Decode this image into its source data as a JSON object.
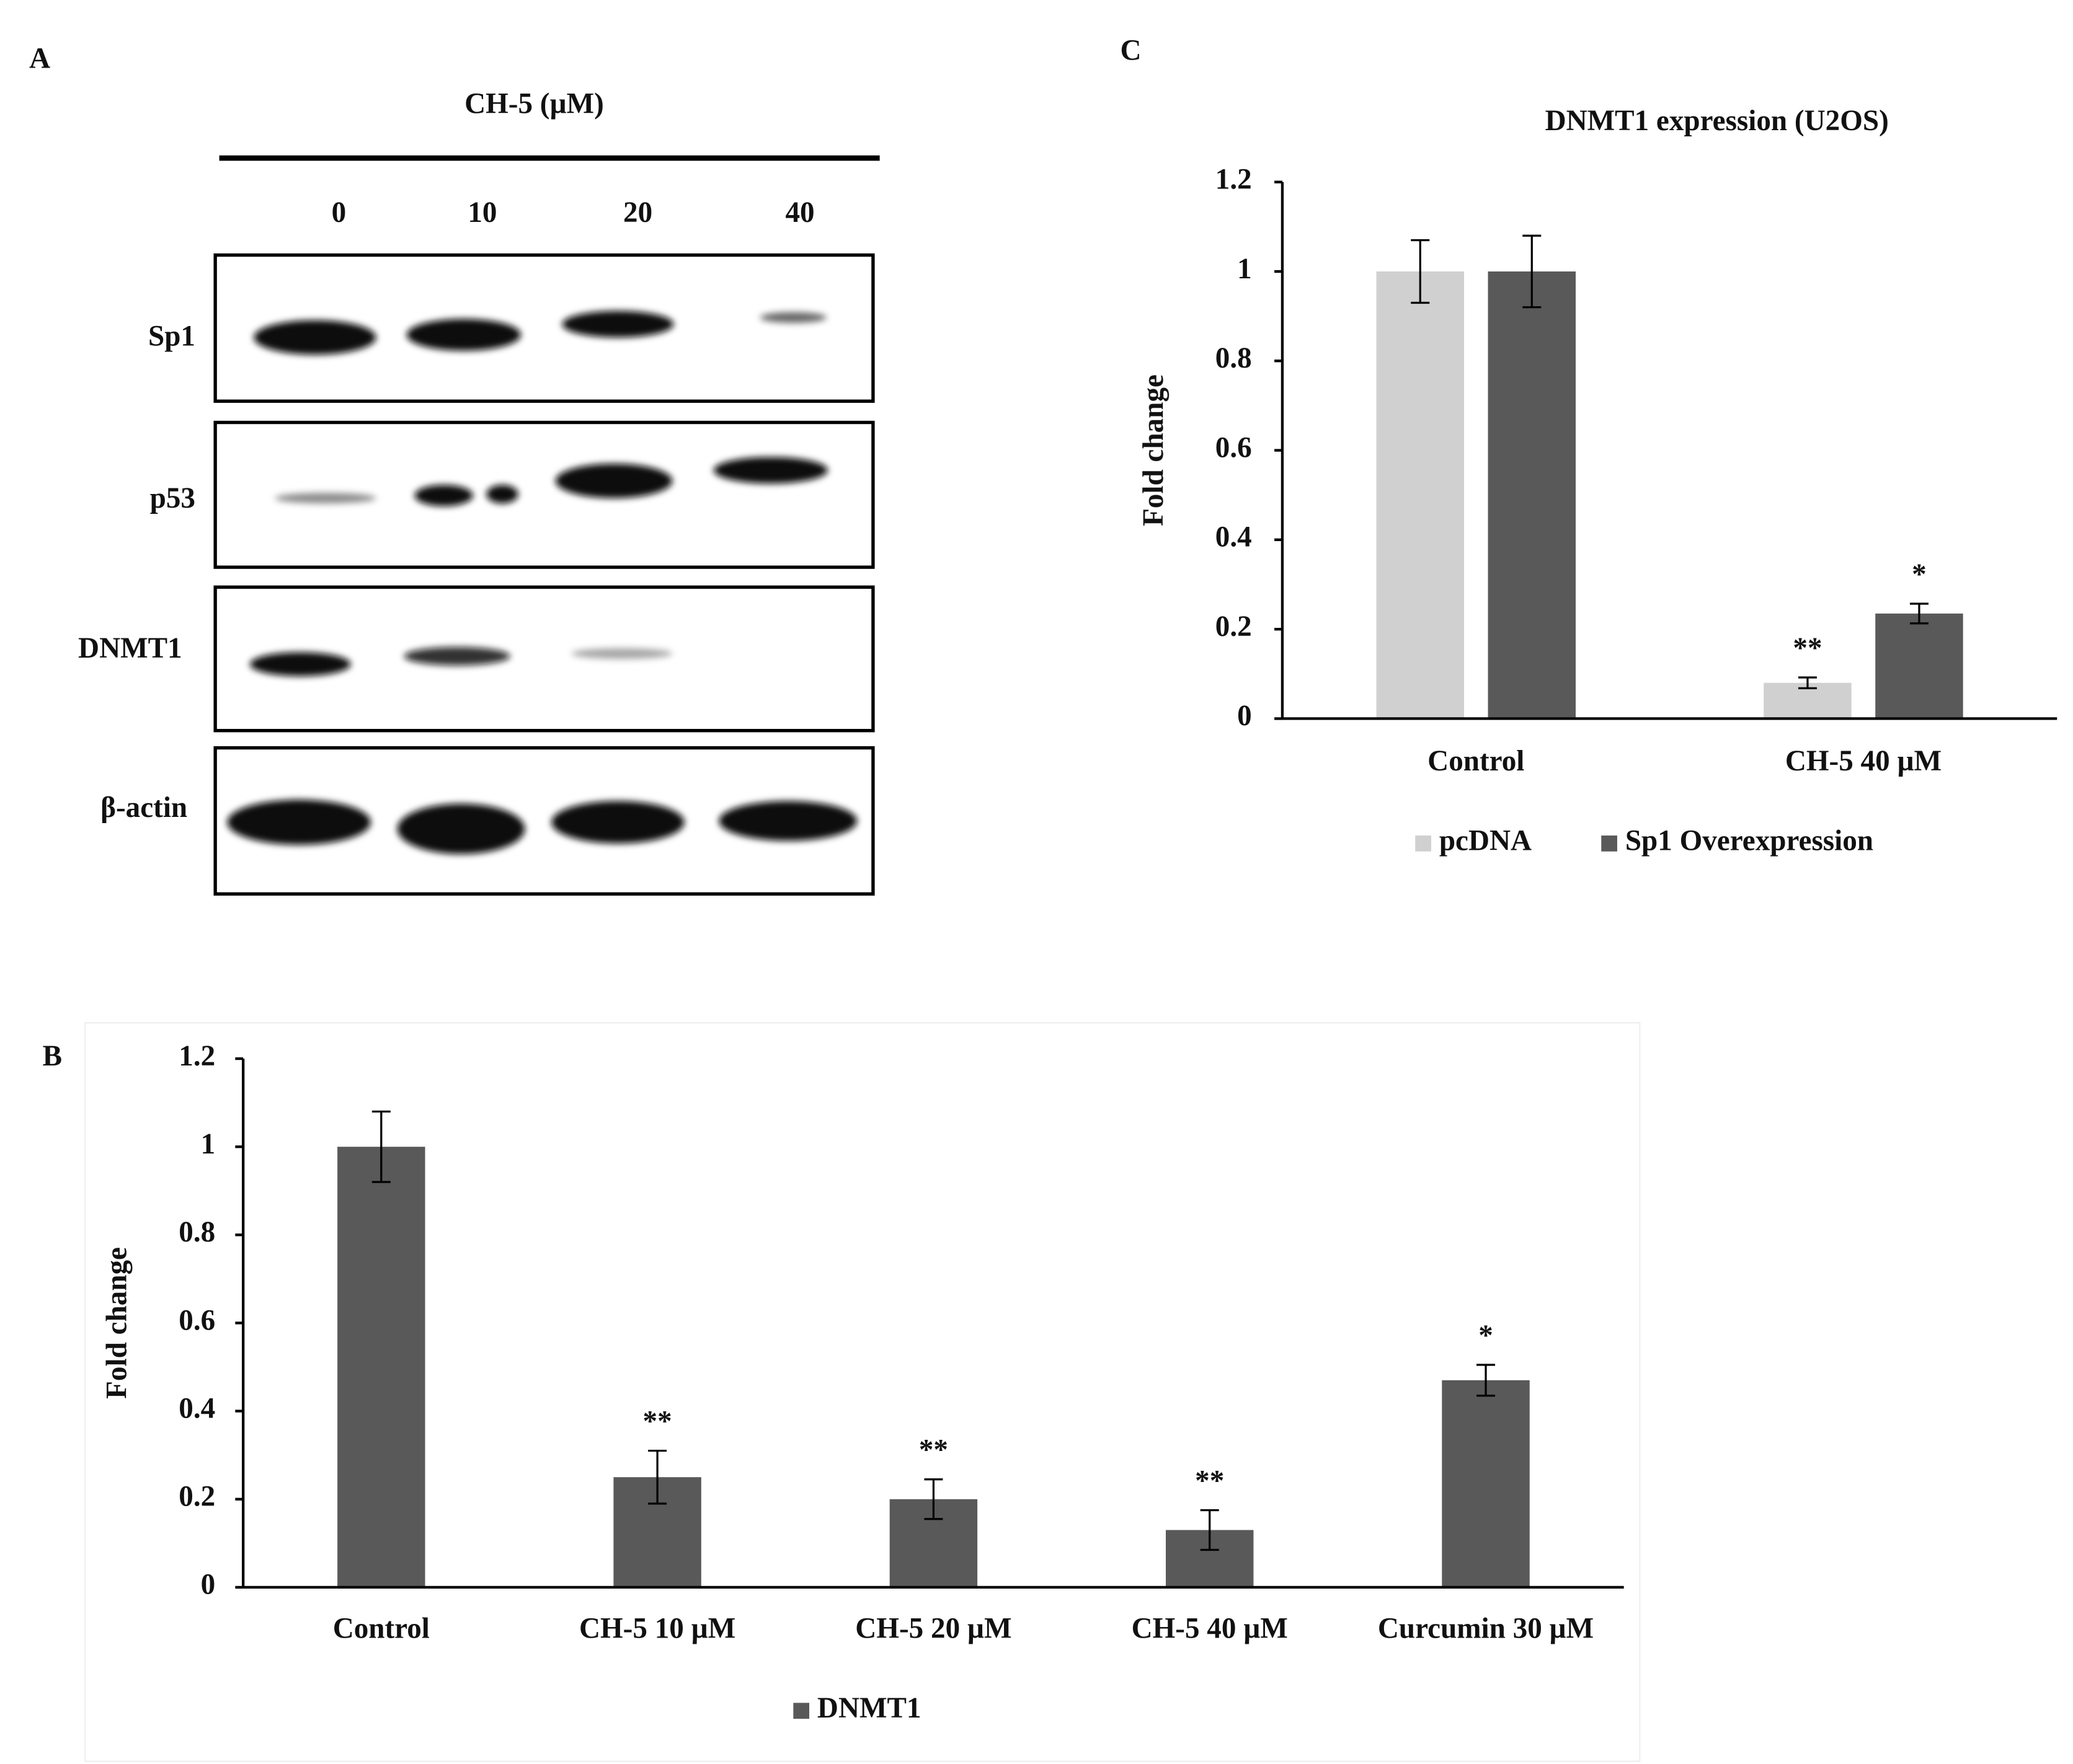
{
  "blot": {
    "panel": "A",
    "treatment": "CH-5 (µM)",
    "doses": [
      "0",
      "10",
      "20",
      "40"
    ],
    "rows": [
      "Sp1",
      "p53",
      "DNMT1",
      "β-actin"
    ]
  },
  "chart_data": [
    {
      "panel": "B",
      "type": "bar",
      "ylabel": "Fold change",
      "categories": [
        "Control",
        "CH-5 10 µM",
        "CH-5 20 µM",
        "CH-5 40 µM",
        "Curcumin 30 µM"
      ],
      "series": [
        {
          "name": "DNMT1",
          "color": "#595959",
          "values": [
            1,
            0.25,
            0.2,
            0.13,
            0.47
          ],
          "errors": [
            0.08,
            0.06,
            0.045,
            0.045,
            0.035
          ],
          "significance": [
            null,
            "**",
            "**",
            "**",
            "*"
          ]
        }
      ],
      "ylim": [
        0,
        1.2
      ],
      "yticks": [
        0,
        0.2,
        0.4,
        0.6,
        0.8,
        1,
        1.2
      ],
      "grid": false,
      "legend": "bottom"
    },
    {
      "panel": "C",
      "type": "bar",
      "title": "DNMT1 expression (U2OS)",
      "ylabel": "Fold change",
      "categories": [
        "Control",
        "CH-5 40 µM"
      ],
      "series": [
        {
          "name": "pcDNA",
          "color": "#d0d0d0",
          "values": [
            1,
            0.08
          ],
          "errors": [
            0.07,
            0.012
          ],
          "significance": [
            null,
            "**"
          ]
        },
        {
          "name": "Sp1 Overexpression",
          "color": "#595959",
          "values": [
            1,
            0.235
          ],
          "errors": [
            0.08,
            0.022
          ],
          "significance": [
            null,
            "*"
          ]
        }
      ],
      "ylim": [
        0,
        1.2
      ],
      "yticks": [
        0,
        0.2,
        0.4,
        0.6,
        0.8,
        1,
        1.2
      ],
      "grid": false,
      "legend": "bottom"
    }
  ]
}
